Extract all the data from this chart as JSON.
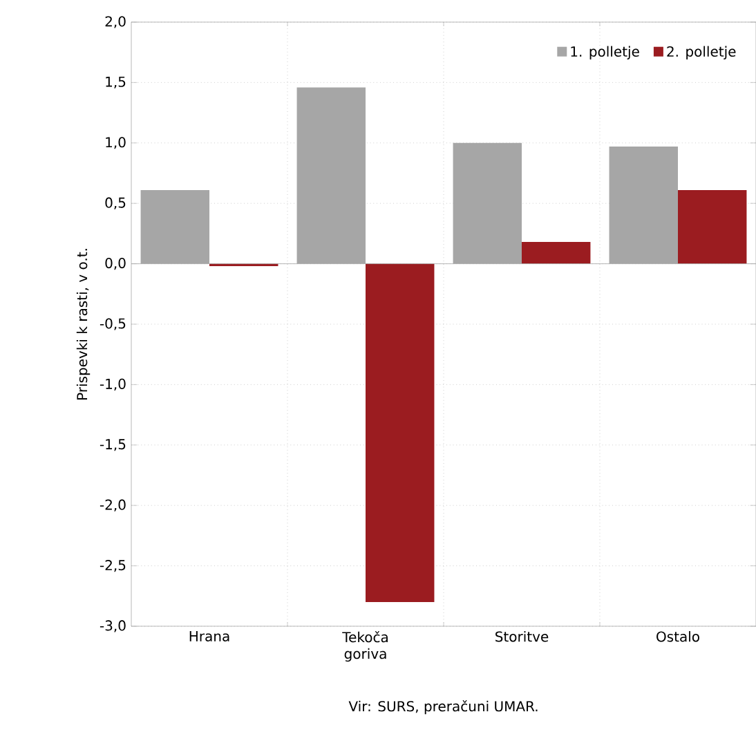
{
  "chart_data": {
    "type": "bar",
    "ylabel": "Prispevki k rasti, v o.t.",
    "categories": [
      "Hrana",
      "Tekoča goriva",
      "Storitve",
      "Ostalo"
    ],
    "series": [
      {
        "name": "1. polletje",
        "color": "#a6a6a6",
        "values": [
          0.61,
          1.46,
          1.0,
          0.97
        ]
      },
      {
        "name": "2. polletje",
        "color": "#9b1c20",
        "values": [
          -0.02,
          -2.8,
          0.18,
          0.61
        ]
      }
    ],
    "ylim": [
      -3,
      2
    ],
    "yticks": [
      {
        "value": -3,
        "label": "-3,0"
      },
      {
        "value": -2.5,
        "label": "-2,5"
      },
      {
        "value": -2,
        "label": "-2,0"
      },
      {
        "value": -1.5,
        "label": "-1,5"
      },
      {
        "value": -1,
        "label": "-1,0"
      },
      {
        "value": -0.5,
        "label": "-0,5"
      },
      {
        "value": 0,
        "label": "0,0"
      },
      {
        "value": 0.5,
        "label": "0,5"
      },
      {
        "value": 1,
        "label": "1,0"
      },
      {
        "value": 1.5,
        "label": "1,5"
      },
      {
        "value": 2,
        "label": "2,0"
      }
    ],
    "grid": true,
    "legend": "top right",
    "annotations": [
      "Vir: SURS, preračuni UMAR."
    ]
  }
}
